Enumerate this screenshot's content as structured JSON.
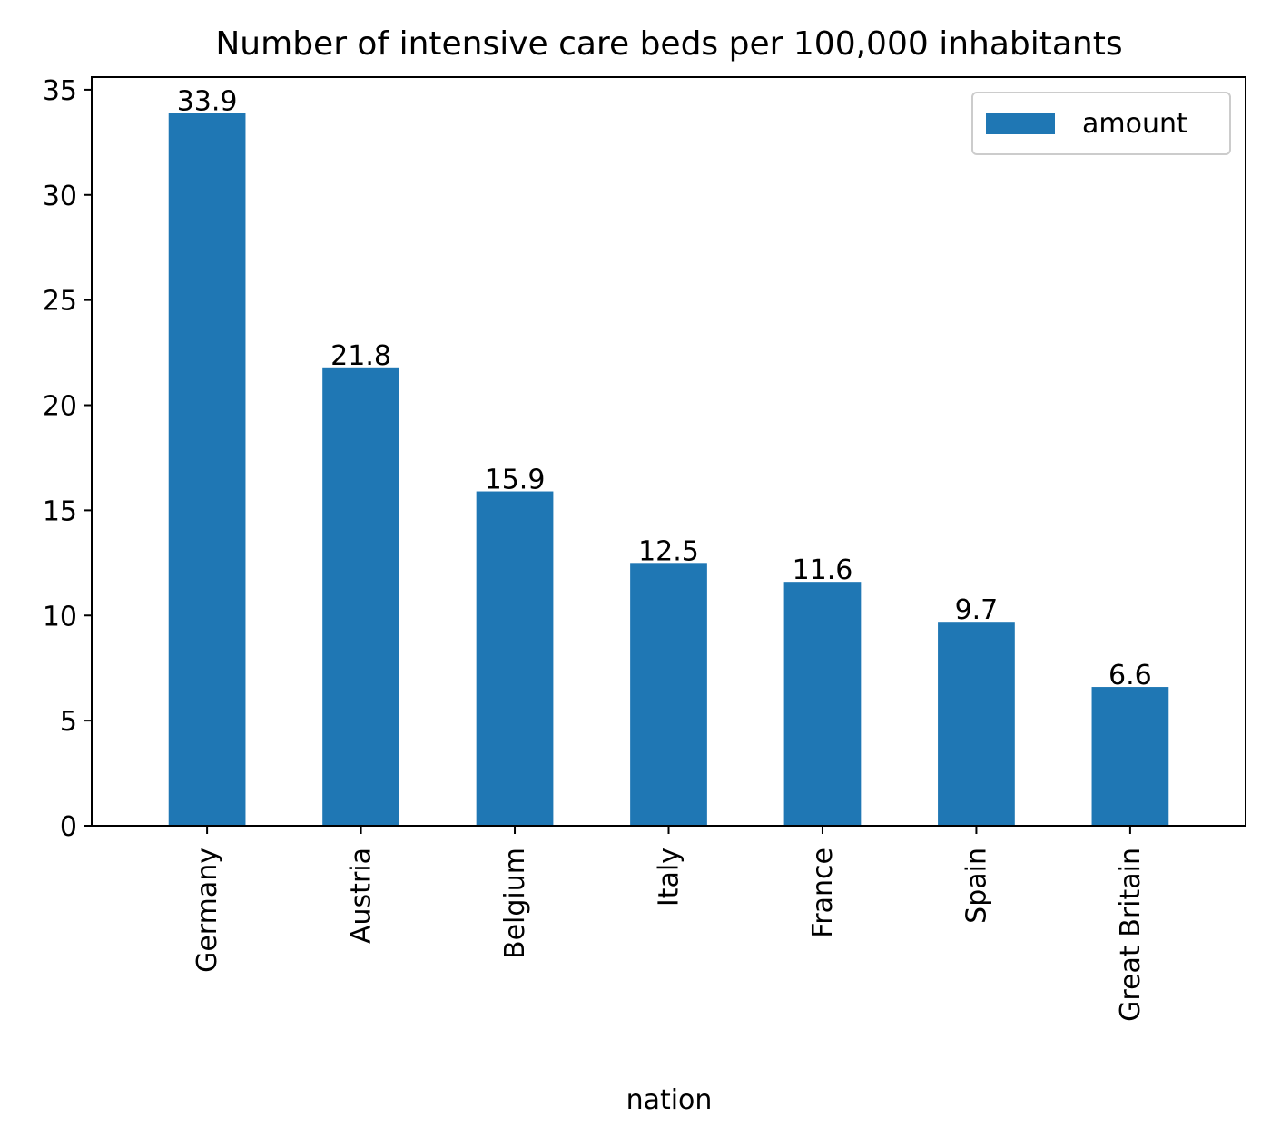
{
  "chart_data": {
    "type": "bar",
    "title": "Number of intensive care beds per 100,000 inhabitants",
    "xlabel": "nation",
    "ylabel": "",
    "categories": [
      "Germany",
      "Austria",
      "Belgium",
      "Italy",
      "France",
      "Spain",
      "Great Britain"
    ],
    "series": [
      {
        "name": "amount",
        "values": [
          33.9,
          21.8,
          15.9,
          12.5,
          11.6,
          9.7,
          6.6
        ],
        "color": "#1f77b4"
      }
    ],
    "data_labels": [
      "33.9",
      "21.8",
      "15.9",
      "12.5",
      "11.6",
      "9.7",
      "6.6"
    ],
    "ylim": [
      0,
      35.6
    ],
    "yticks": [
      0,
      5,
      10,
      15,
      20,
      25,
      30,
      35
    ],
    "xtick_rotation": 90,
    "legend": {
      "position": "top-right"
    },
    "grid": false
  }
}
